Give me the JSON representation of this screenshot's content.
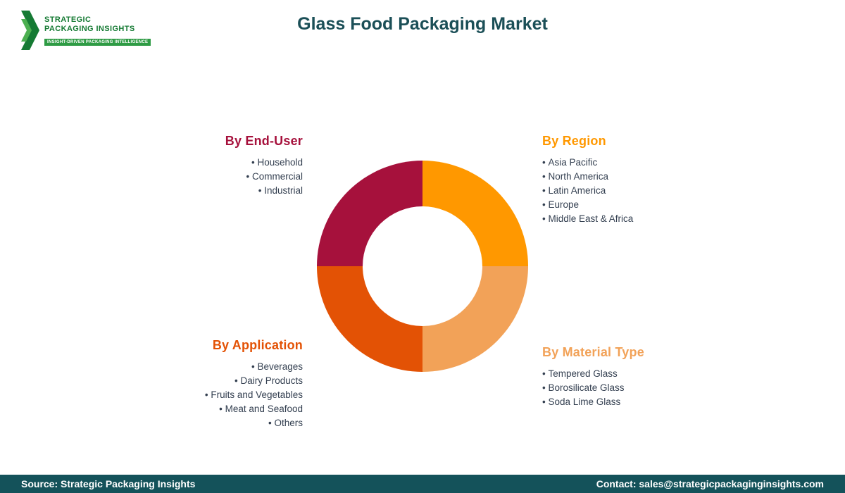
{
  "header": {
    "logo": {
      "line1": "STRATEGIC",
      "line2": "PACKAGING INSIGHTS",
      "tagline": "INSIGHT-DRIVEN PACKAGING INTELLIGENCE",
      "brand_green": "#157A33",
      "tagline_bg": "#2E9B44"
    },
    "title": "Glass Food Packaging Market",
    "title_color": "#1B4F57"
  },
  "sections": {
    "end_user": {
      "heading": "By End-User",
      "color": "#A6113C",
      "items": [
        "Household",
        "Commercial",
        "Industrial"
      ]
    },
    "region": {
      "heading": "By Region",
      "color": "#FF9800",
      "items": [
        "Asia Pacific",
        "North America",
        "Latin America",
        "Europe",
        "Middle East & Africa"
      ]
    },
    "application": {
      "heading": "By Application",
      "color": "#E35205",
      "items": [
        "Beverages",
        "Dairy Products",
        "Fruits and Vegetables",
        "Meat and Seafood",
        "Others"
      ]
    },
    "material": {
      "heading": "By Material Type",
      "color": "#F2A258",
      "items": [
        "Tempered Glass",
        "Borosilicate Glass",
        "Soda Lime Glass"
      ]
    }
  },
  "chart_data": {
    "type": "pie",
    "title": "Glass Food Packaging Market segmentation",
    "donut": true,
    "inner_radius_ratio": 0.57,
    "legend_position": "none",
    "slices": [
      {
        "label": "By Region",
        "value": 25,
        "color": "#FF9800"
      },
      {
        "label": "By Material Type",
        "value": 25,
        "color": "#F2A258"
      },
      {
        "label": "By Application",
        "value": 25,
        "color": "#E35205"
      },
      {
        "label": "By End-User",
        "value": 25,
        "color": "#A6113C"
      }
    ]
  },
  "footer": {
    "source": "Source: Strategic Packaging Insights",
    "contact": "Contact: sales@strategicpackaginginsights.com",
    "background": "#14525A"
  }
}
